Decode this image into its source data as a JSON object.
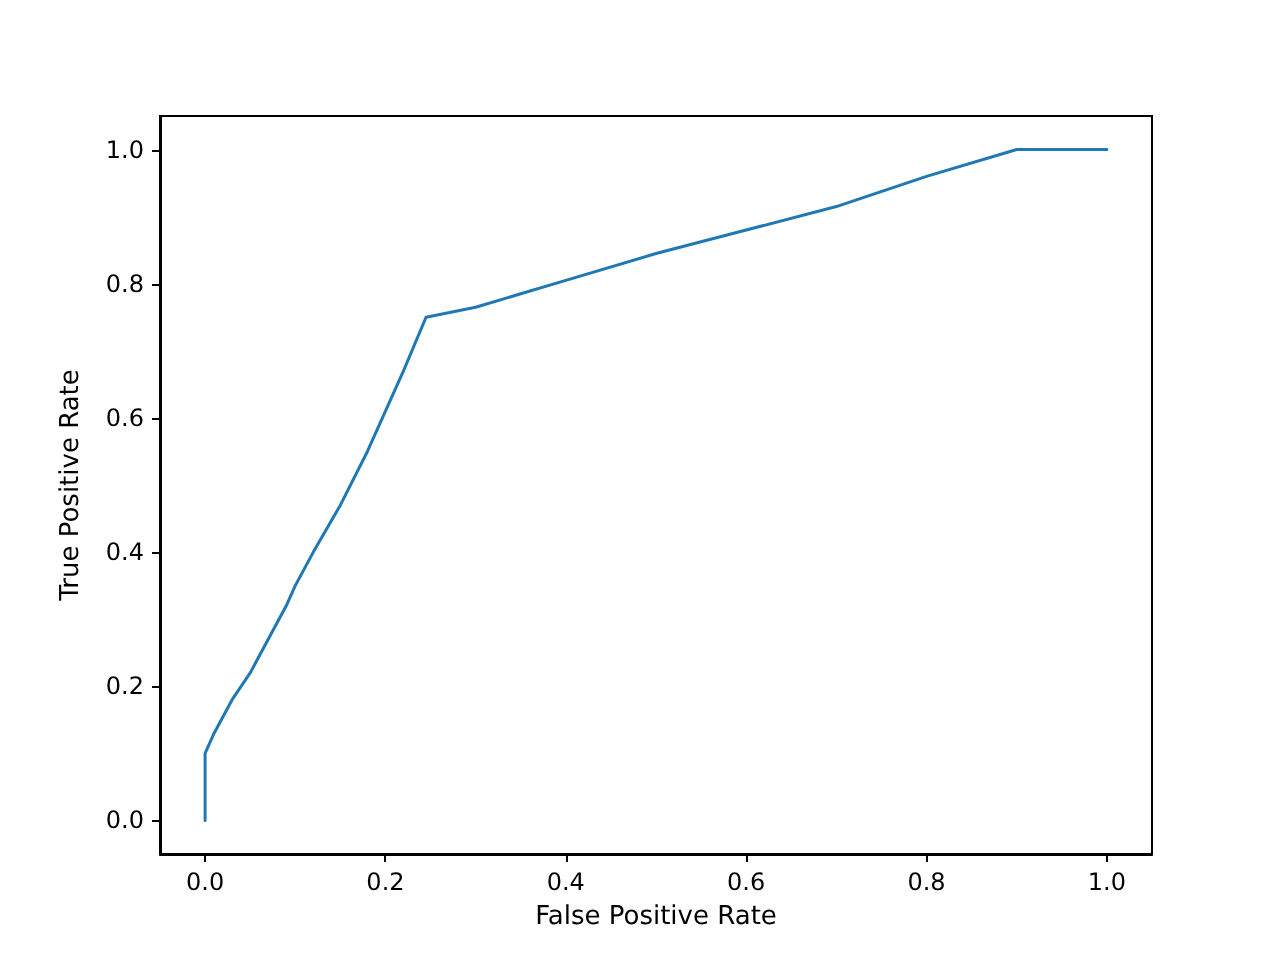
{
  "chart_data": {
    "type": "line",
    "xlabel": "False Positive Rate",
    "ylabel": "True Positive Rate",
    "x": [
      0,
      0,
      0.01,
      0.03,
      0.05,
      0.07,
      0.09,
      0.1,
      0.12,
      0.15,
      0.18,
      0.2,
      0.22,
      0.245,
      0.3,
      0.35,
      0.4,
      0.5,
      0.6,
      0.7,
      0.8,
      0.9,
      1.0
    ],
    "series": [
      {
        "color": "#1f77b4",
        "values": [
          0,
          0.1,
          0.13,
          0.18,
          0.22,
          0.27,
          0.32,
          0.35,
          0.4,
          0.47,
          0.55,
          0.61,
          0.67,
          0.75,
          0.765,
          0.785,
          0.805,
          0.845,
          0.88,
          0.915,
          0.96,
          1.0,
          1.0
        ]
      }
    ],
    "xlim": [
      -0.05,
      1.05
    ],
    "ylim": [
      -0.05,
      1.05
    ],
    "xticks": [
      {
        "value": 0,
        "label": "0.0"
      },
      {
        "value": 0.2,
        "label": "0.2"
      },
      {
        "value": 0.4,
        "label": "0.4"
      },
      {
        "value": 0.6,
        "label": "0.6"
      },
      {
        "value": 0.8,
        "label": "0.8"
      },
      {
        "value": 1,
        "label": "1.0"
      }
    ],
    "yticks": [
      {
        "value": 0,
        "label": "0.0"
      },
      {
        "value": 0.2,
        "label": "0.2"
      },
      {
        "value": 0.4,
        "label": "0.4"
      },
      {
        "value": 0.6,
        "label": "0.6"
      },
      {
        "value": 0.8,
        "label": "0.8"
      },
      {
        "value": 1,
        "label": "1.0"
      }
    ],
    "grid": false,
    "marker": "none",
    "line_style": "solid"
  }
}
